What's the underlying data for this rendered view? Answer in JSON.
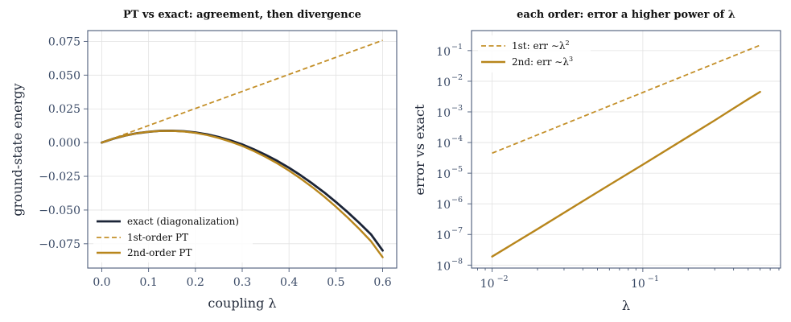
{
  "colors": {
    "exact": "#1b2437",
    "first_order": "#c4902a",
    "second_order": "#b8861c"
  },
  "chart_data": [
    {
      "type": "line",
      "title": "PT vs exact: agreement, then divergence",
      "xlabel": "coupling λ",
      "ylabel": "ground-state energy",
      "xlim": [
        -0.03,
        0.63
      ],
      "ylim": [
        -0.093,
        0.083
      ],
      "xticks": [
        0.0,
        0.1,
        0.2,
        0.3,
        0.4,
        0.5,
        0.6
      ],
      "xtick_labels": [
        "0.0",
        "0.1",
        "0.2",
        "0.3",
        "0.4",
        "0.5",
        "0.6"
      ],
      "yticks": [
        -0.075,
        -0.05,
        -0.025,
        0.0,
        0.025,
        0.05,
        0.075
      ],
      "ytick_labels": [
        "−0.075",
        "−0.050",
        "−0.025",
        "0.000",
        "0.025",
        "0.050",
        "0.075"
      ],
      "grid": true,
      "legend_position": "lower-left",
      "series": [
        {
          "name": "exact (diagonalization)",
          "style": "solid",
          "x": [
            0.0,
            0.025,
            0.05,
            0.075,
            0.1,
            0.125,
            0.15,
            0.175,
            0.2,
            0.225,
            0.25,
            0.275,
            0.3,
            0.325,
            0.35,
            0.375,
            0.4,
            0.425,
            0.45,
            0.475,
            0.5,
            0.525,
            0.55,
            0.575,
            0.6
          ],
          "y": [
            0.0,
            0.0029,
            0.0052,
            0.0069,
            0.008,
            0.0087,
            0.0088,
            0.0084,
            0.0075,
            0.0061,
            0.0041,
            0.0016,
            -0.0014,
            -0.005,
            -0.0091,
            -0.0136,
            -0.0187,
            -0.0243,
            -0.0304,
            -0.0369,
            -0.044,
            -0.0515,
            -0.0595,
            -0.068,
            -0.08
          ]
        },
        {
          "name": "1st-order PT",
          "style": "dashed",
          "x": [
            0.0,
            0.6
          ],
          "y": [
            0.0,
            0.0758
          ]
        },
        {
          "name": "2nd-order PT",
          "style": "solid",
          "x": [
            0.0,
            0.025,
            0.05,
            0.075,
            0.1,
            0.125,
            0.15,
            0.175,
            0.2,
            0.225,
            0.25,
            0.275,
            0.3,
            0.325,
            0.35,
            0.375,
            0.4,
            0.425,
            0.45,
            0.475,
            0.5,
            0.525,
            0.55,
            0.575,
            0.6
          ],
          "y": [
            0.0,
            0.0029,
            0.0052,
            0.0069,
            0.008,
            0.0086,
            0.0087,
            0.0082,
            0.0072,
            0.0056,
            0.0034,
            0.0007,
            -0.0025,
            -0.0063,
            -0.0106,
            -0.0154,
            -0.0208,
            -0.0267,
            -0.0331,
            -0.04,
            -0.0475,
            -0.0555,
            -0.064,
            -0.0731,
            -0.085
          ]
        }
      ]
    },
    {
      "type": "line",
      "title": "each order: error a higher power of λ",
      "xlabel": "λ",
      "ylabel": "error vs exact",
      "xscale": "log",
      "yscale": "log",
      "xlim": [
        0.0073,
        0.82
      ],
      "ylim": [
        8e-09,
        0.45
      ],
      "xticks": [
        0.01,
        0.1
      ],
      "xtick_labels": [
        {
          "base": "10",
          "exp": "−2"
        },
        {
          "base": "10",
          "exp": "−1"
        }
      ],
      "yticks": [
        1e-08,
        1e-07,
        1e-06,
        1e-05,
        0.0001,
        0.001,
        0.01,
        0.1
      ],
      "ytick_labels": [
        {
          "base": "10",
          "exp": "−8"
        },
        {
          "base": "10",
          "exp": "−7"
        },
        {
          "base": "10",
          "exp": "−6"
        },
        {
          "base": "10",
          "exp": "−5"
        },
        {
          "base": "10",
          "exp": "−4"
        },
        {
          "base": "10",
          "exp": "−3"
        },
        {
          "base": "10",
          "exp": "−2"
        },
        {
          "base": "10",
          "exp": "−1"
        }
      ],
      "grid": true,
      "legend_position": "upper-left",
      "series": [
        {
          "name": "1st: err ∼ λ²",
          "label_text": "1st: err ∼λ",
          "label_exp": "2",
          "style": "dashed",
          "x": [
            0.01,
            0.6
          ],
          "y": [
            4.5e-05,
            0.15
          ]
        },
        {
          "name": "2nd: err ∼ λ³",
          "label_text": "2nd: err ∼λ",
          "label_exp": "3",
          "style": "solid",
          "x": [
            0.01,
            0.02,
            0.05,
            0.1,
            0.2,
            0.3,
            0.4,
            0.5,
            0.6
          ],
          "y": [
            1.9e-08,
            1.5e-07,
            2.4e-06,
            1.9e-05,
            0.000155,
            0.00053,
            0.0013,
            0.0026,
            0.0045
          ]
        }
      ]
    }
  ]
}
